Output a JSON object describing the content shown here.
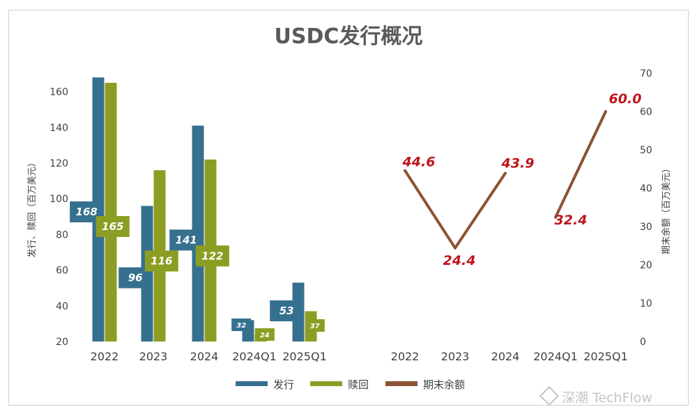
{
  "chart_data": {
    "title": "USDC发行概况",
    "categories": [
      "2022",
      "2023",
      "2024",
      "2024Q1",
      "2025Q1"
    ],
    "bar_chart": {
      "type": "bar",
      "ylabel": "发行、赎回（百万美元）",
      "ylim": [
        20,
        170
      ],
      "yticks": [
        20,
        40,
        60,
        80,
        100,
        120,
        140,
        160
      ],
      "series": [
        {
          "name": "发行",
          "color": "#36708f",
          "values": [
            168,
            96,
            141,
            32,
            53
          ],
          "labels": [
            "168",
            "96",
            "141",
            "32",
            "53"
          ]
        },
        {
          "name": "赎回",
          "color": "#8c9d23",
          "values": [
            165,
            116,
            122,
            24,
            37
          ],
          "labels": [
            "165",
            "116",
            "122",
            "24",
            "37"
          ]
        }
      ]
    },
    "line_chart": {
      "type": "line",
      "ylabel": "期末余额（百万美元）",
      "ylim": [
        0,
        70
      ],
      "yticks": [
        0,
        10,
        20,
        30,
        40,
        50,
        60,
        70
      ],
      "series": [
        {
          "name": "期末余额",
          "color": "#8b5333",
          "values": [
            44.6,
            24.4,
            43.9,
            32.4,
            60.0
          ],
          "labels": [
            "44.6",
            "24.4",
            "43.9",
            "32.4",
            "60.0"
          ]
        }
      ],
      "segments": [
        [
          0,
          1
        ],
        [
          1,
          2
        ],
        [
          3,
          4
        ]
      ]
    },
    "legend": {
      "position": "bottom",
      "items": [
        "发行",
        "赎回",
        "期末余额"
      ]
    }
  },
  "watermark": "深潮 TechFlow"
}
